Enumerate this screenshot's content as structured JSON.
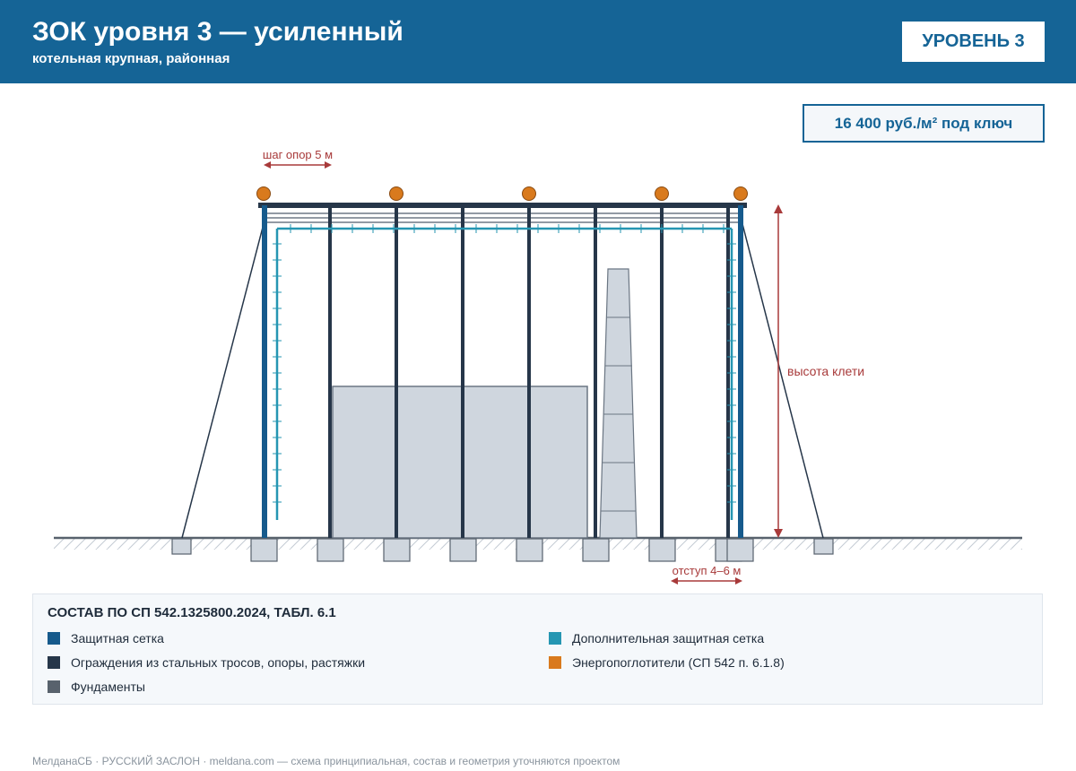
{
  "header": {
    "title": "ЗОК уровня 3 — усиленный",
    "subtitle": "котельная крупная, районная",
    "level_badge": "УРОВЕНЬ 3"
  },
  "price": "16 400 руб./м² под ключ",
  "annotations": {
    "pitch": "шаг опор 5 м",
    "height": "высота клети",
    "offset": "отступ 4–6 м"
  },
  "legend": {
    "title": "СОСТАВ ПО СП 542.1325800.2024, ТАБЛ. 6.1",
    "items": [
      {
        "label": "Защитная сетка",
        "color": "#165a8c"
      },
      {
        "label": "Дополнительная защитная сетка",
        "color": "#2596b2"
      },
      {
        "label": "Ограждения из стальных тросов, опоры, растяжки",
        "color": "#263649"
      },
      {
        "label": "Энергопоглотители (СП 542 п. 6.1.8)",
        "color": "#d97a1d"
      },
      {
        "label": "Фундаменты",
        "color": "#58626d"
      }
    ]
  },
  "colors": {
    "header_bg": "#156496",
    "net": "#165a8c",
    "extra_net": "#2596b2",
    "cable": "#263649",
    "absorber": "#d97a1d",
    "foundation": "#58626d",
    "dimension": "#a83a3a"
  },
  "footer": "МелданаСБ · РУССКИЙ ЗАСЛОН · meldana.com — схема принципиальная, состав и геометрия уточняются проектом"
}
